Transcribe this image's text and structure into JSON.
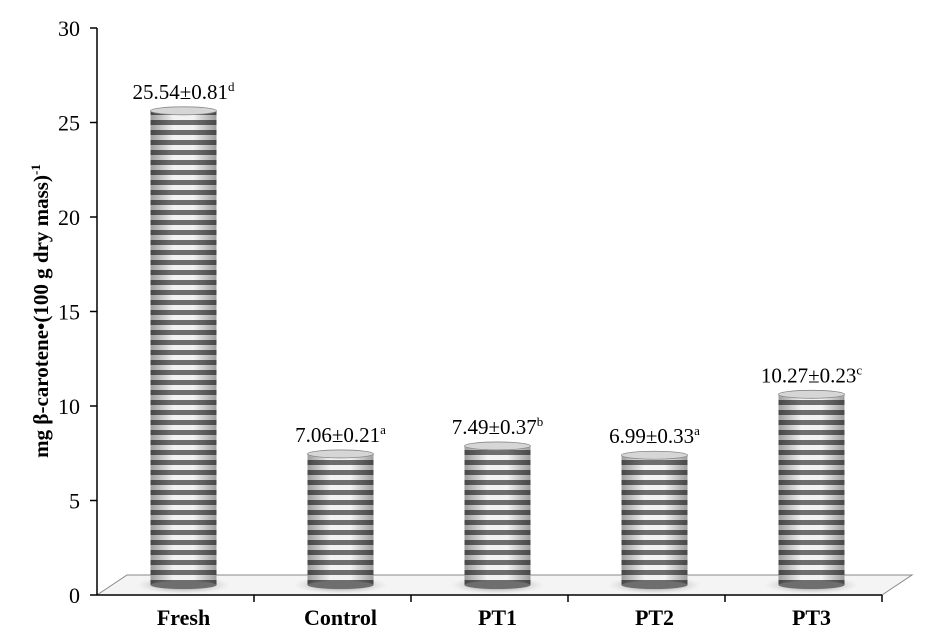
{
  "chart_data": {
    "type": "bar",
    "ylabel_main": "mg β-carotene•(100 g dry mass)",
    "ylabel_sup": "-1",
    "categories": [
      "Fresh",
      "Control",
      "PT1",
      "PT2",
      "PT3"
    ],
    "values": [
      25.54,
      7.06,
      7.49,
      6.99,
      10.27
    ],
    "value_labels": [
      "25.54±0.81",
      "7.06±0.21",
      "7.49±0.37",
      "6.99±0.33",
      "10.27±0.23"
    ],
    "significance": [
      "d",
      "a",
      "b",
      "a",
      "c"
    ],
    "ylim": [
      0,
      30
    ],
    "yticks": [
      "0",
      "5",
      "10",
      "15",
      "20",
      "25",
      "30"
    ],
    "colors": {
      "bar_stripe_dark": "#6e6e6e",
      "bar_stripe_light": "#f2f2f2",
      "floor": "#f4f4f4",
      "axis": "#000000"
    }
  }
}
